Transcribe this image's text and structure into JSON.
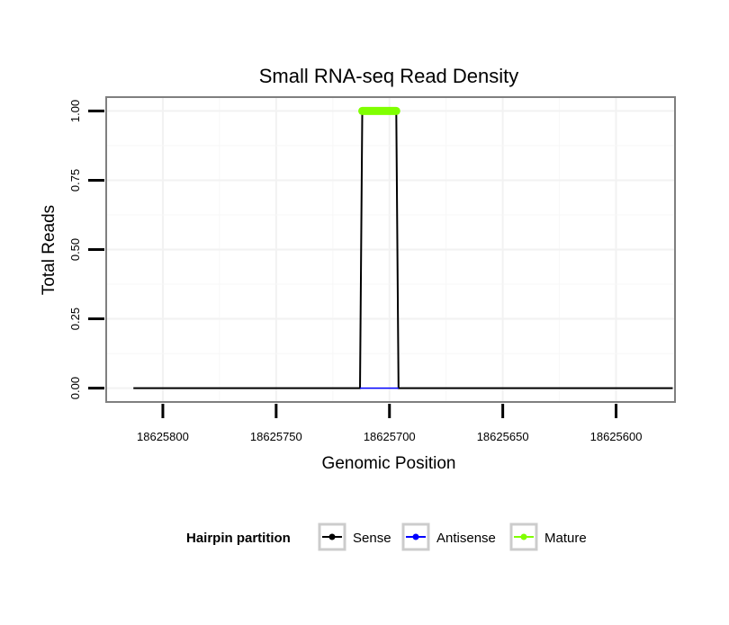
{
  "chart_data": {
    "type": "line",
    "title": "Small RNA-seq Read Density",
    "xlabel": "Genomic Position",
    "ylabel": "Total Reads",
    "xlim": [
      18625825,
      18625574
    ],
    "x_reversed": true,
    "ylim": [
      -0.05,
      1.05
    ],
    "x_ticks": [
      18625800,
      18625750,
      18625700,
      18625650,
      18625600
    ],
    "x_tick_labels": [
      "18625800",
      "18625750",
      "18625700",
      "18625650",
      "18625600"
    ],
    "y_ticks": [
      0,
      0.25,
      0.5,
      0.75,
      1.0
    ],
    "y_tick_labels": [
      "0.00",
      "0.25",
      "0.50",
      "0.75",
      "1.00"
    ],
    "grid": true,
    "legend": {
      "title": "Hairpin partition",
      "placement": "bottom",
      "entries": [
        "Sense",
        "Antisense",
        "Mature"
      ]
    },
    "series": [
      {
        "name": "Sense",
        "color": "#000000",
        "x": [
          18625813,
          18625713,
          18625712,
          18625697,
          18625696,
          18625575
        ],
        "y": [
          0,
          0,
          1,
          1,
          0,
          0
        ]
      },
      {
        "name": "Antisense",
        "color": "#0000ff",
        "x": [
          18625713,
          18625696
        ],
        "y": [
          0,
          0
        ]
      },
      {
        "name": "Mature",
        "color": "#80ff00",
        "x": [
          18625712,
          18625697
        ],
        "y": [
          1,
          1
        ]
      }
    ]
  }
}
